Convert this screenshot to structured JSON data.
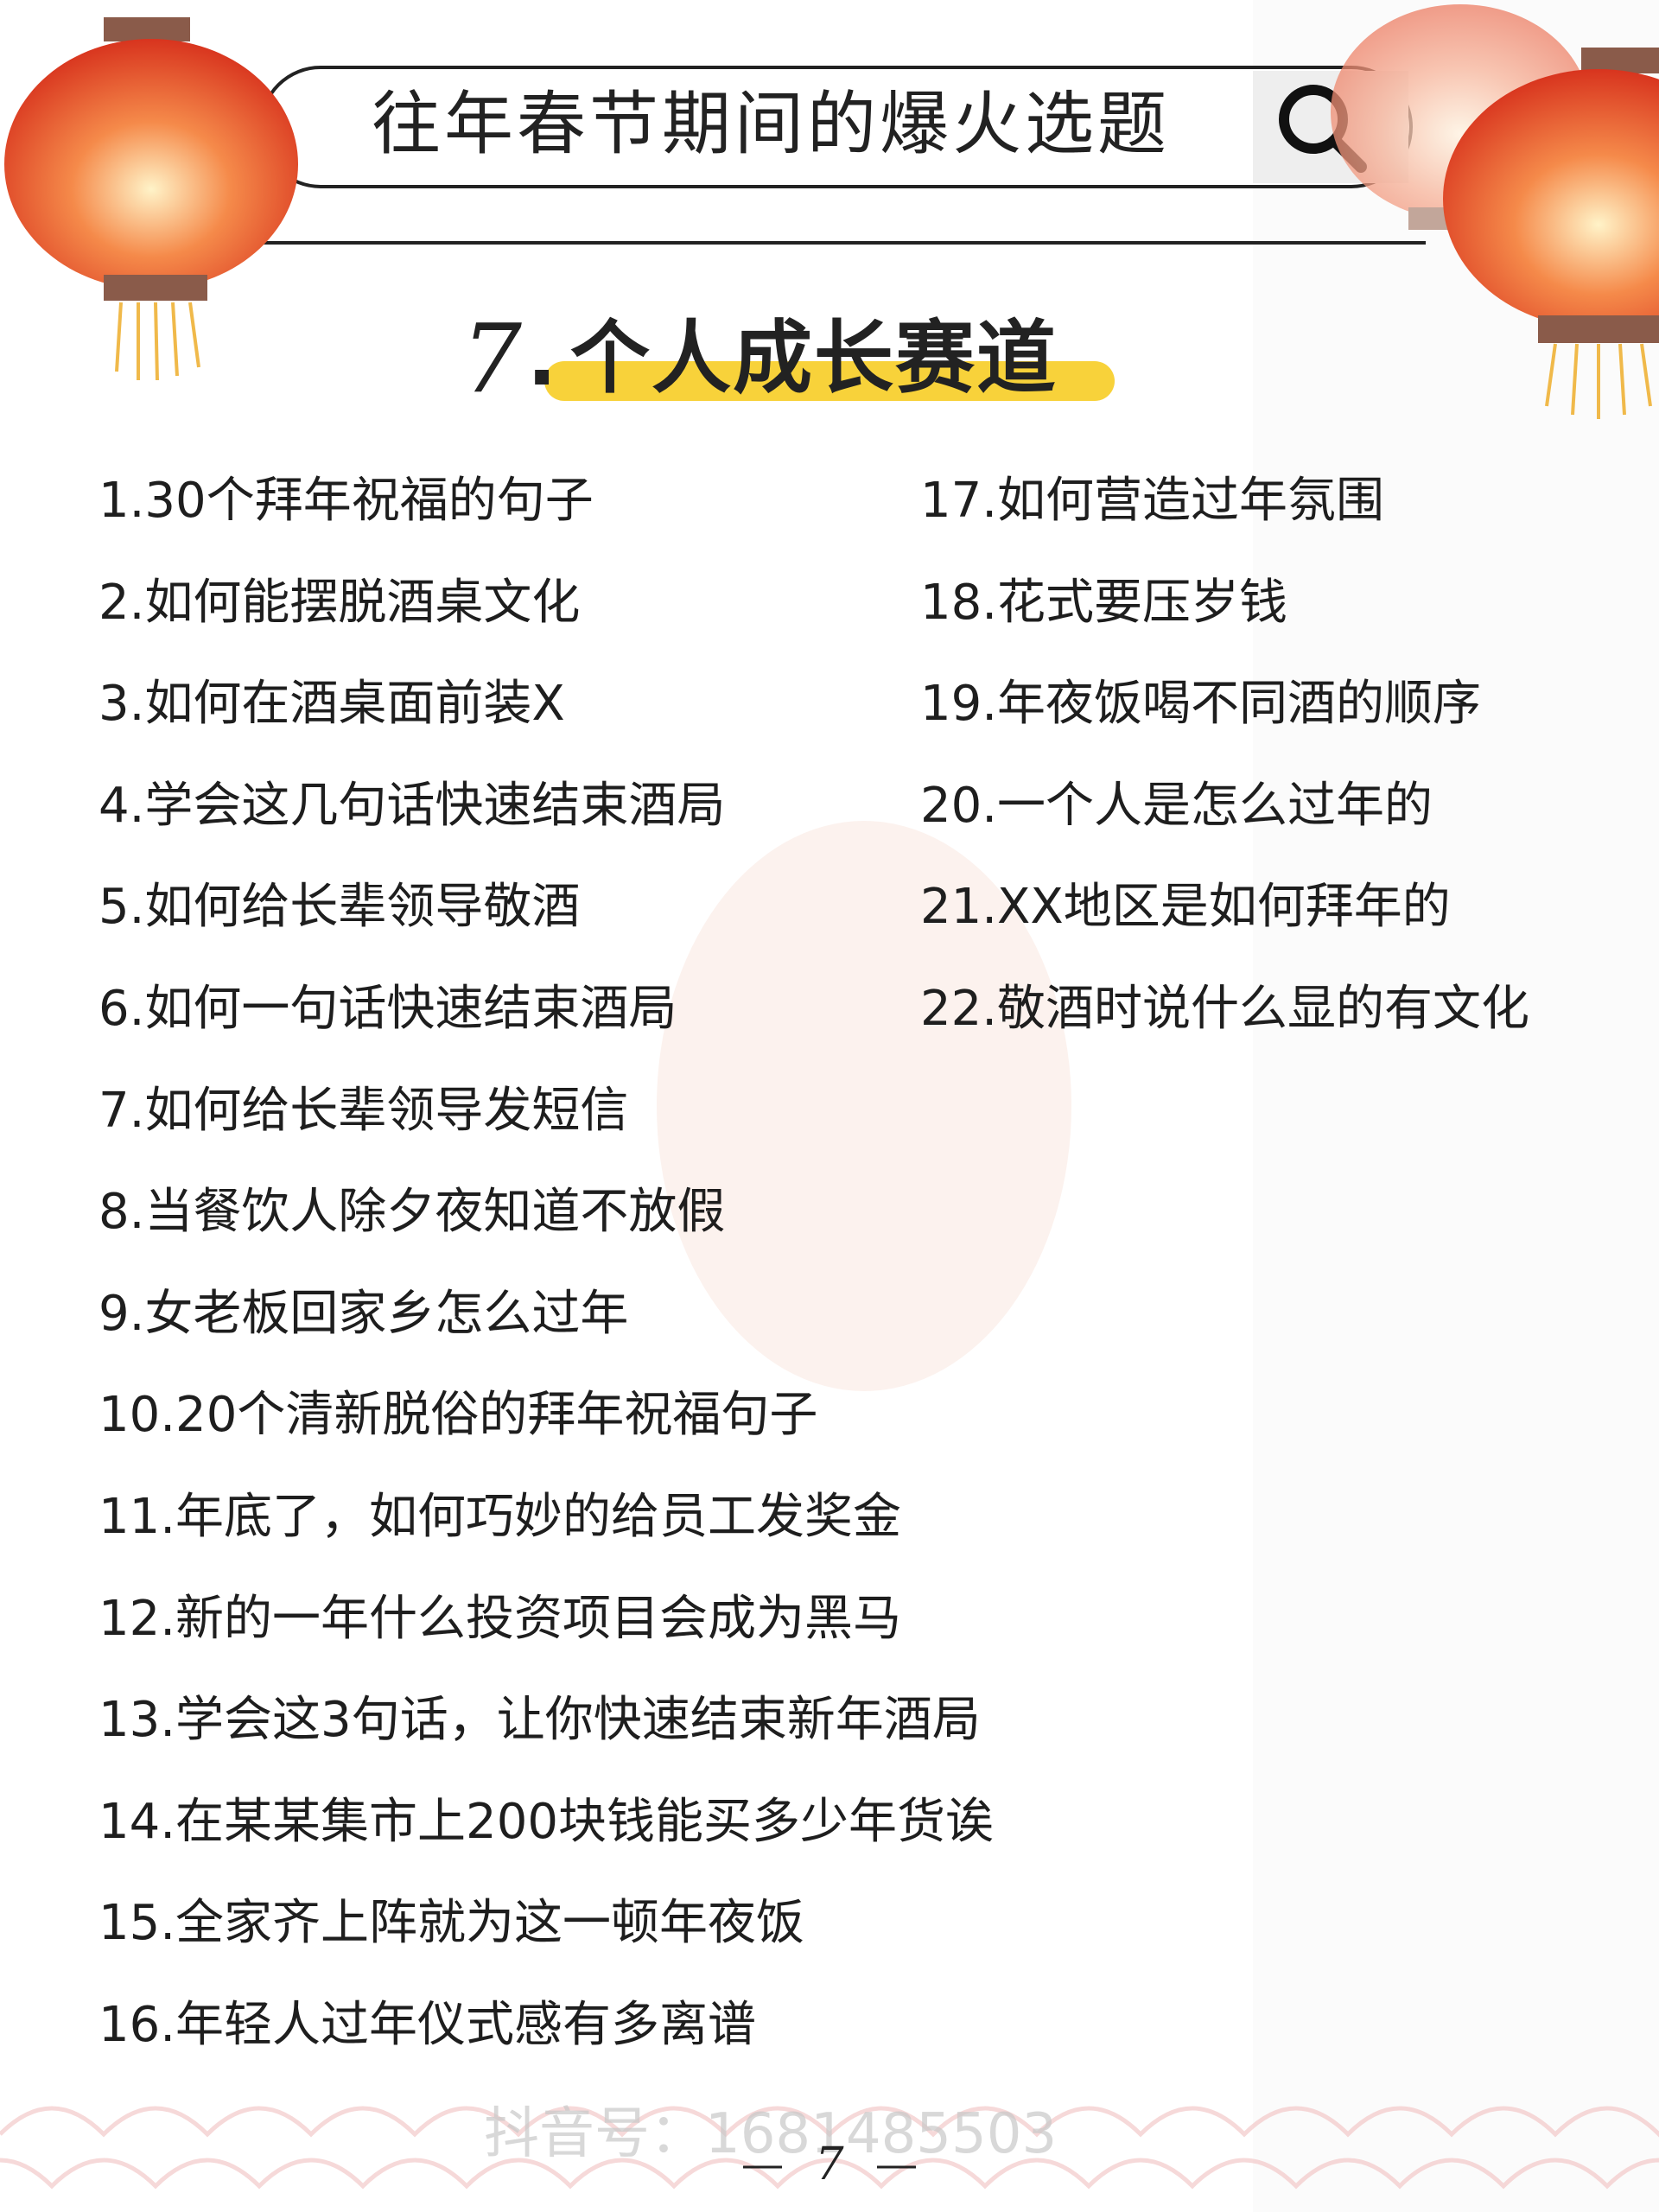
{
  "header": {
    "title": "往年春节期间的爆火选题"
  },
  "section": {
    "number": "7",
    "title": "个人成长赛道"
  },
  "items": [
    "1.30个拜年祝福的句子",
    "2.如何能摆脱酒桌文化",
    "3.如何在酒桌面前装X",
    "4.学会这几句话快速结束酒局",
    "5.如何给长辈领导敬酒",
    "6.如何一句话快速结束酒局",
    "7.如何给长辈领导发短信",
    "8.当餐饮人除夕夜知道不放假",
    "9.女老板回家乡怎么过年",
    "10.20个清新脱俗的拜年祝福句子",
    "11.年底了，如何巧妙的给员工发奖金",
    "12.新的一年什么投资项目会成为黑马",
    "13.学会这3句话，让你快速结束新年酒局",
    "14.在某某集市上200块钱能买多少年货诶",
    "15.全家齐上阵就为这一顿年夜饭",
    "16.年轻人过年仪式感有多离谱",
    "17.如何营造过年氛围",
    "18.花式要压岁钱",
    "19.年夜饭喝不同酒的顺序",
    "20.一个人是怎么过年的",
    "21.XX地区是如何拜年的",
    "22.敬酒时说什么显的有文化"
  ],
  "watermark": "抖音号：1681485503",
  "page_number": "7"
}
